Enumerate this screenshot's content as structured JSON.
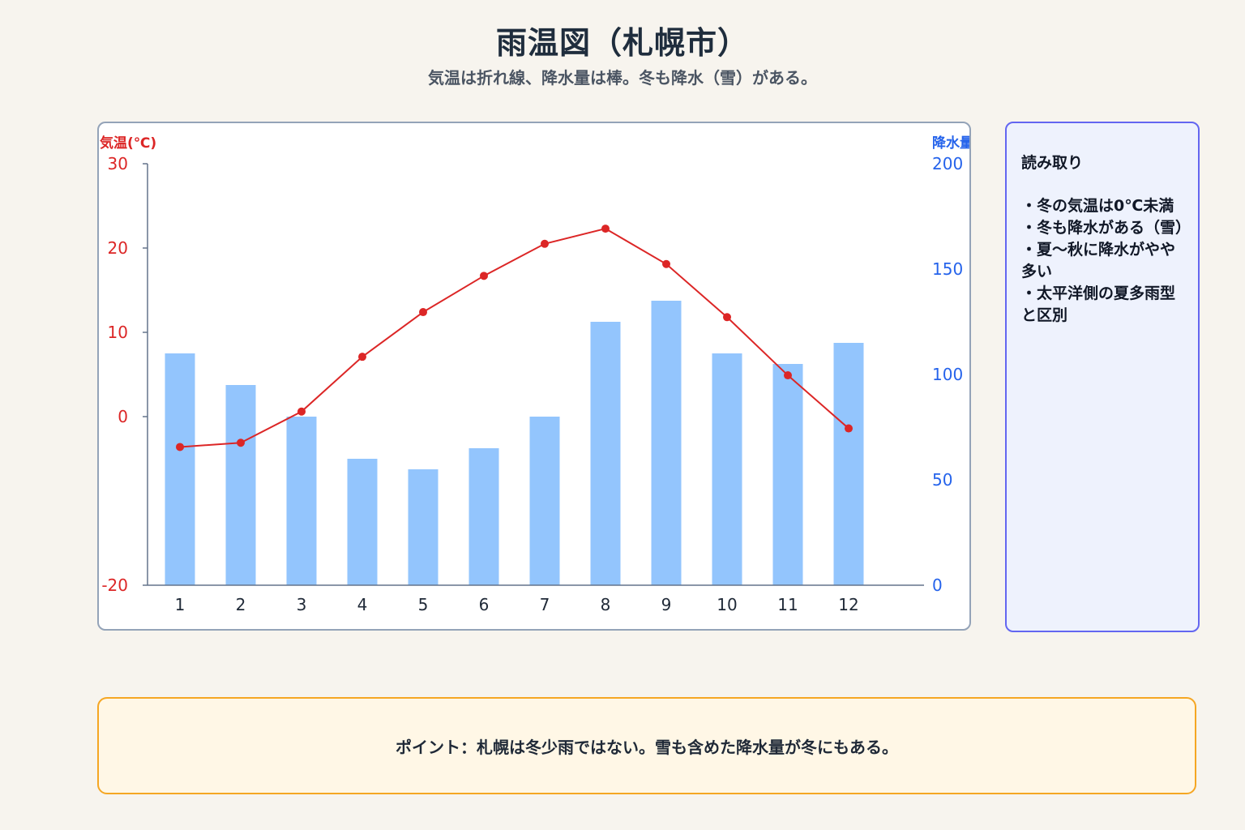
{
  "header": {
    "title": "雨温図（札幌市）",
    "subtitle": "気温は折れ線、降水量は棒。冬も降水（雪）がある。"
  },
  "notes": {
    "title": "読み取り",
    "items": [
      "・冬の気温は0℃未満",
      "・冬も降水がある（雪）",
      "・夏〜秋に降水がやや多い",
      "・太平洋側の夏多雨型と区別"
    ]
  },
  "point": {
    "text": "ポイント：札幌は冬少雨ではない。雪も含めた降水量が冬にもある。"
  },
  "colors": {
    "temperature": "#dc2626",
    "precipitation_bar": "#93c5fd",
    "precipitation_axis": "#2563eb"
  },
  "chart_data": {
    "type": "bar",
    "categories": [
      "1",
      "2",
      "3",
      "4",
      "5",
      "6",
      "7",
      "8",
      "9",
      "10",
      "11",
      "12"
    ],
    "series": [
      {
        "name": "降水量",
        "type": "bar",
        "axis": "right",
        "values": [
          110,
          95,
          80,
          60,
          55,
          65,
          80,
          125,
          135,
          110,
          105,
          115
        ]
      },
      {
        "name": "気温",
        "type": "line",
        "axis": "left",
        "values": [
          -3.6,
          -3.1,
          0.6,
          7.1,
          12.4,
          16.7,
          20.5,
          22.3,
          18.1,
          11.8,
          4.9,
          -1.4
        ]
      }
    ],
    "y_left": {
      "label": "気温(℃)",
      "range": [
        -20,
        30
      ],
      "ticks": [
        "30",
        "20",
        "10",
        "0",
        "-20"
      ],
      "tick_values": [
        30,
        20,
        10,
        0,
        -20
      ]
    },
    "y_right": {
      "label": "降水量(mm)",
      "range": [
        0,
        200
      ],
      "ticks": [
        "200",
        "150",
        "100",
        "50",
        "0"
      ],
      "tick_values": [
        200,
        150,
        100,
        50,
        0
      ]
    },
    "grid": false,
    "legend": "none"
  }
}
